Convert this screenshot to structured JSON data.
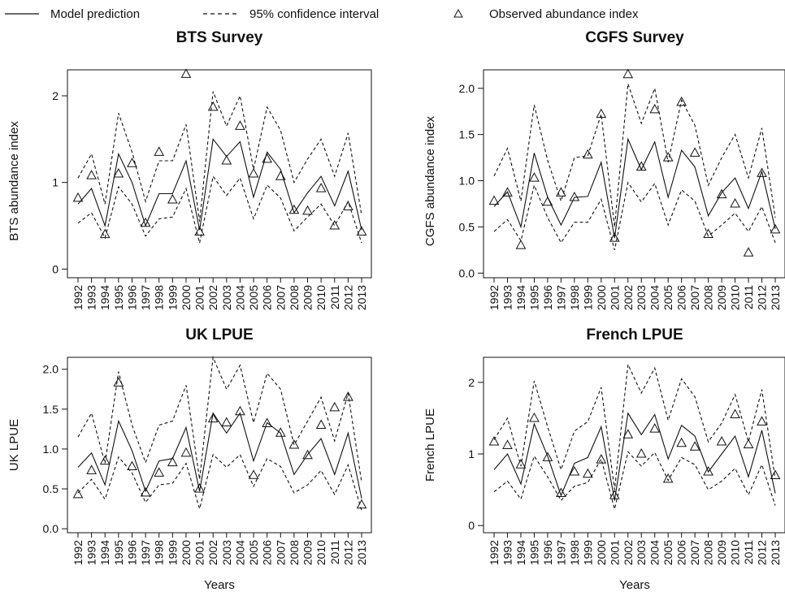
{
  "legend": {
    "items": [
      {
        "label": "Model prediction",
        "style": "solid"
      },
      {
        "label": "95% confidence interval",
        "style": "dashed"
      },
      {
        "label": "Observed abundance index",
        "style": "triangle"
      }
    ]
  },
  "colors": {
    "ink": "#111111",
    "background": "#ffffff"
  },
  "chart_data": [
    {
      "type": "line",
      "title": "BTS Survey",
      "xlabel": "",
      "ylabel": "BTS abundance index",
      "ylim": [
        -0.1,
        2.3
      ],
      "yticks": [
        0,
        1,
        2
      ],
      "yticklabels": [
        "0",
        "1",
        "2"
      ],
      "x": [
        "1992",
        "1993",
        "1994",
        "1995",
        "1996",
        "1997",
        "1998",
        "1999",
        "2000",
        "2001",
        "2002",
        "2003",
        "2004",
        "2005",
        "2006",
        "2007",
        "2008",
        "2009",
        "2010",
        "2011",
        "2012",
        "2013"
      ],
      "series": [
        {
          "name": "Model prediction",
          "style": "solid",
          "values": [
            0.75,
            0.93,
            0.5,
            1.33,
            1.0,
            0.5,
            0.87,
            0.87,
            1.25,
            0.45,
            1.5,
            1.3,
            1.47,
            0.83,
            1.35,
            1.15,
            0.65,
            0.88,
            1.07,
            0.73,
            1.13,
            0.45
          ]
        },
        {
          "name": "95% confidence interval",
          "style": "dashed",
          "values": [
            1.05,
            1.33,
            0.75,
            1.8,
            1.35,
            0.78,
            1.25,
            1.25,
            1.67,
            0.55,
            2.05,
            1.65,
            2.0,
            1.15,
            1.87,
            1.6,
            1.0,
            1.27,
            1.5,
            1.07,
            1.57,
            0.62
          ]
        },
        {
          "name": "95% confidence interval",
          "style": "dashed",
          "values": [
            0.53,
            0.65,
            0.36,
            0.95,
            0.75,
            0.38,
            0.58,
            0.6,
            0.93,
            0.3,
            1.07,
            0.85,
            1.05,
            0.58,
            0.97,
            0.82,
            0.44,
            0.6,
            0.75,
            0.5,
            0.78,
            0.3
          ]
        },
        {
          "name": "Observed abundance index",
          "style": "triangle",
          "values": [
            0.82,
            1.08,
            0.4,
            1.1,
            1.22,
            0.53,
            1.35,
            0.8,
            2.25,
            0.43,
            1.87,
            1.25,
            1.65,
            1.1,
            1.27,
            1.07,
            0.68,
            0.67,
            0.93,
            0.5,
            0.72,
            0.43
          ]
        }
      ]
    },
    {
      "type": "line",
      "title": "CGFS Survey",
      "xlabel": "",
      "ylabel": "CGFS abundance index",
      "ylim": [
        -0.05,
        2.2
      ],
      "yticks": [
        0,
        0.5,
        1,
        1.5,
        2
      ],
      "yticklabels": [
        "0.0",
        "0.5",
        "1.0",
        "1.5",
        "2.0"
      ],
      "x": [
        "1992",
        "1993",
        "1994",
        "1995",
        "1996",
        "1997",
        "1998",
        "1999",
        "2000",
        "2001",
        "2002",
        "2003",
        "2004",
        "2005",
        "2006",
        "2007",
        "2008",
        "2009",
        "2010",
        "2011",
        "2012",
        "2013"
      ],
      "series": [
        {
          "name": "Model prediction",
          "style": "solid",
          "values": [
            0.72,
            0.88,
            0.5,
            1.3,
            0.82,
            0.52,
            0.82,
            0.83,
            1.2,
            0.38,
            1.45,
            1.12,
            1.42,
            0.82,
            1.33,
            1.15,
            0.62,
            0.87,
            1.03,
            0.7,
            1.1,
            0.48
          ]
        },
        {
          "name": "95% confidence interval",
          "style": "dashed",
          "values": [
            1.05,
            1.35,
            0.78,
            1.82,
            1.22,
            0.78,
            1.25,
            1.27,
            1.72,
            0.5,
            2.05,
            1.62,
            2.0,
            1.2,
            1.87,
            1.6,
            0.95,
            1.25,
            1.5,
            1.03,
            1.57,
            0.6
          ]
        },
        {
          "name": "95% confidence interval",
          "style": "dashed",
          "values": [
            0.45,
            0.58,
            0.35,
            0.95,
            0.6,
            0.33,
            0.55,
            0.55,
            0.8,
            0.25,
            0.98,
            0.77,
            0.97,
            0.52,
            0.9,
            0.78,
            0.4,
            0.52,
            0.65,
            0.45,
            0.72,
            0.33
          ]
        },
        {
          "name": "Observed abundance index",
          "style": "triangle",
          "values": [
            0.78,
            0.87,
            0.3,
            1.03,
            0.77,
            0.87,
            0.82,
            1.28,
            1.72,
            0.38,
            2.15,
            1.15,
            1.77,
            1.25,
            1.85,
            1.3,
            0.42,
            0.85,
            0.75,
            0.22,
            1.08,
            0.47
          ]
        }
      ]
    },
    {
      "type": "line",
      "title": "UK LPUE",
      "xlabel": "Years",
      "ylabel": "UK LPUE",
      "ylim": [
        -0.05,
        2.15
      ],
      "yticks": [
        0,
        0.5,
        1,
        1.5,
        2
      ],
      "yticklabels": [
        "0.0",
        "0.5",
        "1.0",
        "1.5",
        "2.0"
      ],
      "x": [
        "1992",
        "1993",
        "1994",
        "1995",
        "1996",
        "1997",
        "1998",
        "1999",
        "2000",
        "2001",
        "2002",
        "2003",
        "2004",
        "2005",
        "2006",
        "2007",
        "2008",
        "2009",
        "2010",
        "2011",
        "2012",
        "2013"
      ],
      "series": [
        {
          "name": "Model prediction",
          "style": "solid",
          "values": [
            0.77,
            0.95,
            0.55,
            1.35,
            0.98,
            0.47,
            0.85,
            0.88,
            1.27,
            0.47,
            1.45,
            1.2,
            1.45,
            0.85,
            1.33,
            1.2,
            0.68,
            0.93,
            1.13,
            0.68,
            1.2,
            0.38
          ]
        },
        {
          "name": "95% confidence interval",
          "style": "dashed",
          "values": [
            1.15,
            1.45,
            0.82,
            1.97,
            1.3,
            0.83,
            1.3,
            1.35,
            1.8,
            0.62,
            2.15,
            1.75,
            2.05,
            1.33,
            1.95,
            1.75,
            1.05,
            1.35,
            1.65,
            1.1,
            1.7,
            0.58
          ]
        },
        {
          "name": "95% confidence interval",
          "style": "dashed",
          "values": [
            0.45,
            0.62,
            0.37,
            0.9,
            0.7,
            0.33,
            0.55,
            0.57,
            0.82,
            0.25,
            0.93,
            0.77,
            0.93,
            0.53,
            0.88,
            0.78,
            0.45,
            0.55,
            0.73,
            0.43,
            0.8,
            0.23
          ]
        },
        {
          "name": "Observed abundance index",
          "style": "triangle",
          "values": [
            0.43,
            0.73,
            0.85,
            1.83,
            0.78,
            0.45,
            0.7,
            0.83,
            0.95,
            0.5,
            1.38,
            1.33,
            1.47,
            0.67,
            1.32,
            1.2,
            1.05,
            0.92,
            1.3,
            1.52,
            1.65,
            0.3
          ]
        }
      ]
    },
    {
      "type": "line",
      "title": "French LPUE",
      "xlabel": "Years",
      "ylabel": "French LPUE",
      "ylim": [
        -0.1,
        2.35
      ],
      "yticks": [
        0,
        1,
        2
      ],
      "yticklabels": [
        "0",
        "1",
        "2"
      ],
      "x": [
        "1992",
        "1993",
        "1994",
        "1995",
        "1996",
        "1997",
        "1998",
        "1999",
        "2000",
        "2001",
        "2002",
        "2003",
        "2004",
        "2005",
        "2006",
        "2007",
        "2008",
        "2009",
        "2010",
        "2011",
        "2012",
        "2013"
      ],
      "series": [
        {
          "name": "Model prediction",
          "style": "solid",
          "values": [
            0.78,
            1.0,
            0.58,
            1.42,
            0.97,
            0.42,
            0.87,
            0.95,
            1.38,
            0.35,
            1.57,
            1.27,
            1.55,
            0.93,
            1.4,
            1.25,
            0.75,
            1.0,
            1.25,
            0.68,
            1.33,
            0.45
          ]
        },
        {
          "name": "95% confidence interval",
          "style": "dashed",
          "values": [
            1.2,
            1.5,
            0.83,
            2.02,
            1.38,
            0.78,
            1.32,
            1.45,
            1.93,
            0.5,
            2.25,
            1.85,
            2.2,
            1.47,
            2.05,
            1.8,
            1.17,
            1.43,
            1.83,
            1.17,
            1.9,
            0.65
          ]
        },
        {
          "name": "95% confidence interval",
          "style": "dashed",
          "values": [
            0.47,
            0.62,
            0.37,
            0.97,
            0.68,
            0.35,
            0.55,
            0.6,
            0.93,
            0.23,
            1.03,
            0.83,
            1.02,
            0.63,
            0.95,
            0.85,
            0.5,
            0.62,
            0.8,
            0.43,
            0.85,
            0.28
          ]
        },
        {
          "name": "Observed abundance index",
          "style": "triangle",
          "values": [
            1.17,
            1.12,
            0.85,
            1.5,
            0.95,
            0.45,
            0.75,
            0.72,
            0.92,
            0.42,
            1.27,
            1.0,
            1.35,
            0.65,
            1.15,
            1.1,
            0.75,
            1.17,
            1.55,
            1.13,
            1.45,
            0.7
          ]
        }
      ]
    }
  ]
}
